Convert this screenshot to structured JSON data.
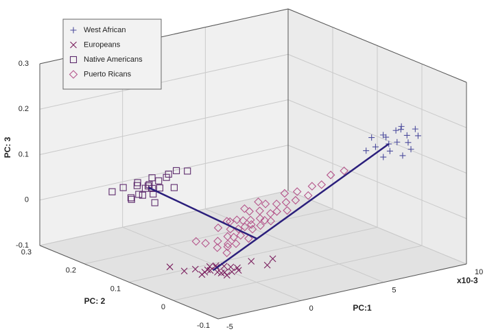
{
  "chart_data": {
    "type": "scatter3d",
    "xlabel": "PC:1",
    "ylabel": "PC: 2",
    "zlabel": "PC: 3",
    "x_multiplier": "x10-3",
    "xlim": [
      -5,
      10
    ],
    "xticks": [
      -5,
      0,
      5,
      10
    ],
    "ylim": [
      -0.1,
      0.3
    ],
    "yticks": [
      -0.1,
      0,
      0.1,
      0.2,
      0.3
    ],
    "zlim": [
      -0.1,
      0.3
    ],
    "zticks": [
      -0.1,
      0,
      0.1,
      0.2,
      0.3
    ],
    "grid": true,
    "legend": "upper left",
    "line_color": "#2b1f7c",
    "lines": [
      {
        "x": [
          8,
          -1
        ],
        "y": [
          0,
          0.06
        ],
        "z": [
          0.14,
          -0.09
        ]
      },
      {
        "x": [
          -3,
          1.25
        ],
        "y": [
          0.13,
          0.045
        ],
        "z": [
          0.08,
          -0.0325
        ]
      }
    ],
    "series": [
      {
        "name": "West African",
        "color": "#4b4b9c",
        "marker": "plus",
        "x": [
          6.9,
          7.2,
          7.5,
          7.8,
          8.0,
          8.1,
          8.3,
          8.5,
          8.7,
          8.9,
          9.1,
          9.3,
          9.5,
          7.4,
          8.2,
          8.8,
          9.0,
          9.6
        ],
        "y": [
          0.01,
          0.0,
          0.02,
          -0.01,
          0.0,
          0.01,
          -0.02,
          0.0,
          0.01,
          -0.01,
          0.0,
          0.02,
          -0.01,
          -0.01,
          0.02,
          -0.02,
          0.01,
          0.0
        ],
        "z": [
          0.13,
          0.14,
          0.15,
          0.13,
          0.14,
          0.15,
          0.12,
          0.14,
          0.16,
          0.14,
          0.15,
          0.16,
          0.15,
          0.12,
          0.15,
          0.13,
          0.16,
          0.16
        ]
      },
      {
        "name": "Europeans",
        "color": "#7a1f5e",
        "marker": "x",
        "x": [
          -2.8,
          -2.2,
          -1.8,
          -1.5,
          -1.2,
          -1.0,
          -0.8,
          -0.6,
          -0.4,
          -0.2,
          0.0,
          -1.4,
          -0.9,
          -0.5,
          -1.1,
          0.5,
          1.2,
          1.8,
          -0.7,
          -1.6,
          -0.3,
          0.2
        ],
        "y": [
          0.09,
          0.08,
          0.07,
          0.06,
          0.06,
          0.05,
          0.06,
          0.05,
          0.04,
          0.05,
          0.04,
          0.07,
          0.07,
          0.06,
          0.05,
          0.03,
          0.02,
          0.03,
          0.04,
          0.05,
          0.06,
          0.05
        ],
        "z": [
          -0.08,
          -0.09,
          -0.085,
          -0.09,
          -0.08,
          -0.09,
          -0.085,
          -0.08,
          -0.09,
          -0.085,
          -0.09,
          -0.1,
          -0.095,
          -0.1,
          -0.075,
          -0.07,
          -0.08,
          -0.075,
          -0.095,
          -0.08,
          -0.1,
          -0.09
        ]
      },
      {
        "name": "Native Americans",
        "color": "#5c2a6c",
        "marker": "square",
        "x": [
          -4.4,
          -4.0,
          -3.8,
          -3.6,
          -3.4,
          -3.2,
          -3.0,
          -2.8,
          -2.6,
          -2.4,
          -2.2,
          -2.0,
          -1.6,
          -1.2,
          -3.5,
          -3.1,
          -2.7,
          -2.9,
          -3.3,
          -2.5,
          -1.8,
          -3.7
        ],
        "y": [
          0.16,
          0.15,
          0.14,
          0.13,
          0.14,
          0.13,
          0.12,
          0.13,
          0.12,
          0.13,
          0.12,
          0.11,
          0.12,
          0.11,
          0.15,
          0.14,
          0.14,
          0.12,
          0.12,
          0.14,
          0.13,
          0.13
        ],
        "z": [
          0.07,
          0.08,
          0.06,
          0.07,
          0.09,
          0.08,
          0.07,
          0.1,
          0.08,
          0.09,
          0.1,
          0.08,
          0.11,
          0.11,
          0.05,
          0.06,
          0.08,
          0.05,
          0.09,
          0.07,
          0.1,
          0.09
        ]
      },
      {
        "name": "Puerto Ricans",
        "color": "#b5558b",
        "marker": "diamond",
        "x": [
          -1.05,
          -0.58,
          -0.5,
          -0.12,
          -0.34,
          -0.01,
          0.28,
          0.18,
          0.56,
          0.24,
          0.88,
          0.84,
          0.81,
          1.14,
          1.16,
          1.54,
          1.2,
          1.6,
          1.66,
          2.03,
          2.09,
          1.98,
          2.4,
          2.46,
          2.86,
          2.9,
          2.92,
          3.34,
          3.49,
          3.94,
          4.2,
          4.64,
          5.14,
          5.76,
          -0.07,
          0.11,
          0.55,
          1.15,
          1.77,
          0.53,
          0.25,
          1.01,
          1.68,
          -1.46,
          -0.22
        ],
        "y": [
          0.075,
          0.066,
          0.068,
          0.06,
          0.073,
          0.064,
          0.056,
          0.065,
          0.056,
          0.068,
          0.05,
          0.057,
          0.06,
          0.051,
          0.056,
          0.048,
          0.06,
          0.051,
          0.054,
          0.043,
          0.046,
          0.053,
          0.043,
          0.046,
          0.037,
          0.041,
          0.045,
          0.036,
          0.038,
          0.03,
          0.031,
          0.026,
          0.024,
          0.017,
          0.061,
          0.07,
          0.064,
          0.054,
          0.047,
          0.06,
          0.06,
          0.064,
          0.058,
          0.081,
          0.058
        ],
        "z": [
          -0.036,
          -0.046,
          -0.033,
          -0.045,
          -0.007,
          -0.025,
          -0.04,
          -0.011,
          -0.024,
          0.004,
          -0.031,
          -0.008,
          0.005,
          -0.013,
          0.005,
          -0.007,
          0.022,
          0.007,
          0.022,
          0.001,
          0.016,
          0.035,
          0.019,
          0.034,
          0.02,
          0.036,
          0.054,
          0.039,
          0.056,
          0.047,
          0.065,
          0.067,
          0.085,
          0.092,
          -0.04,
          0.005,
          0.007,
          -0.004,
          0.003,
          -0.011,
          -0.027,
          0.028,
          0.04,
          -0.031,
          -0.057
        ]
      }
    ]
  }
}
